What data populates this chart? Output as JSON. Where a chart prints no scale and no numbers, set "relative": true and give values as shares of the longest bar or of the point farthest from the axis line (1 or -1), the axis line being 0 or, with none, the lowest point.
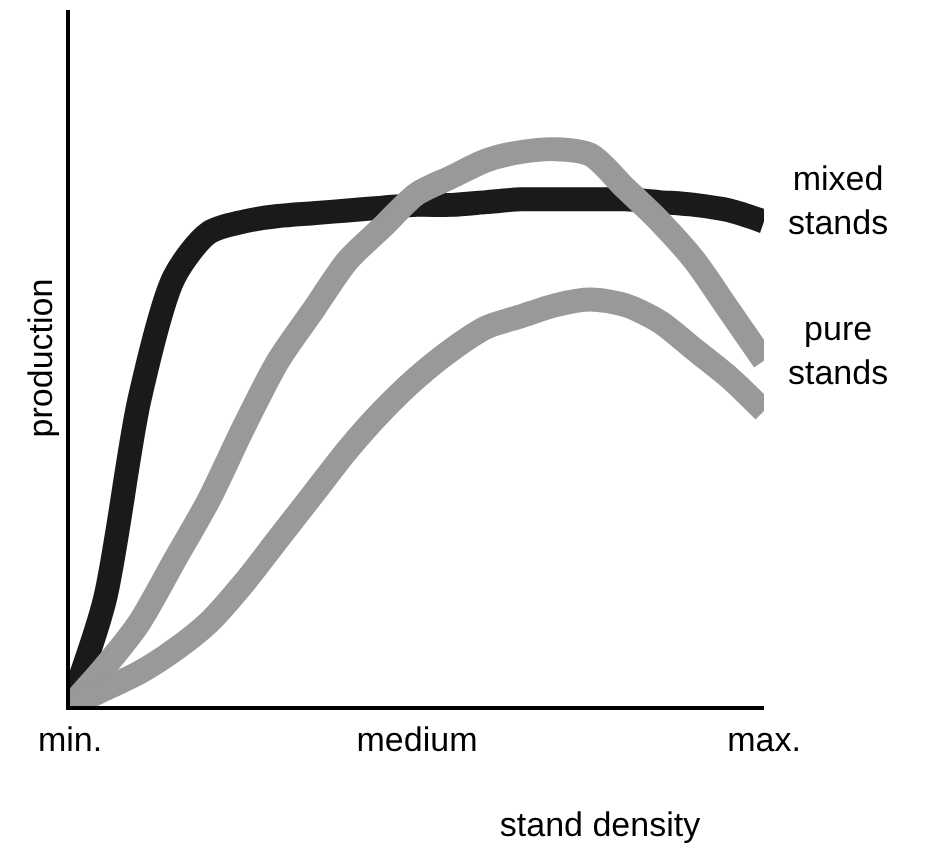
{
  "chart_data": {
    "type": "line",
    "relative": true,
    "xlabel": "stand density",
    "ylabel": "production",
    "categories": [
      "min.",
      null,
      null,
      null,
      null,
      null,
      null,
      null,
      null,
      null,
      "medium",
      null,
      null,
      null,
      null,
      null,
      null,
      null,
      null,
      null,
      "max."
    ],
    "grid": false,
    "marker": "none",
    "line_style": "solid",
    "series": [
      {
        "color": "#1a1a1a",
        "values": [
          0,
          0.19,
          0.55,
          0.77,
          0.85,
          0.87,
          0.88,
          0.885,
          0.89,
          0.895,
          0.9,
          0.9,
          0.905,
          0.91,
          0.91,
          0.91,
          0.91,
          0.905,
          0.9,
          0.89,
          0.87
        ]
      },
      {
        "color": "#999999",
        "values": [
          0,
          0.07,
          0.15,
          0.26,
          0.37,
          0.5,
          0.62,
          0.71,
          0.8,
          0.86,
          0.92,
          0.95,
          0.98,
          0.995,
          1,
          0.99,
          0.93,
          0.87,
          0.8,
          0.71,
          0.62
        ]
      },
      {
        "color": "#999999",
        "values": [
          0,
          0.03,
          0.06,
          0.1,
          0.15,
          0.22,
          0.3,
          0.38,
          0.46,
          0.53,
          0.59,
          0.64,
          0.68,
          0.7,
          0.72,
          0.73,
          0.72,
          0.69,
          0.64,
          0.59,
          0.53
        ]
      }
    ],
    "annotations": [
      {
        "text": "mixed stands",
        "x": "max.",
        "y": 0.87
      },
      {
        "text": "pure stands",
        "x": "max.",
        "y": 0.6
      }
    ]
  }
}
